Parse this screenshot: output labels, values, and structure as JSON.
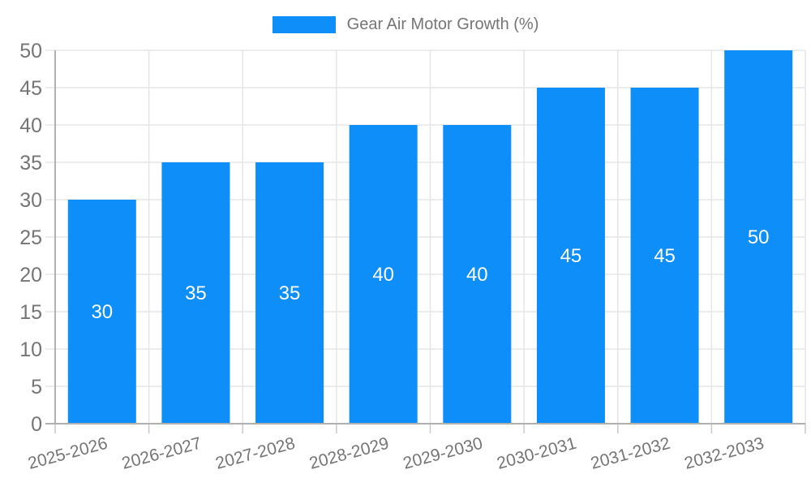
{
  "chart_data": {
    "type": "bar",
    "title": "",
    "legend": {
      "position": "top",
      "label": "Gear Air Motor Growth (%)"
    },
    "categories": [
      "2025-2026",
      "2026-2027",
      "2027-2028",
      "2028-2029",
      "2029-2030",
      "2030-2031",
      "2031-2032",
      "2032-2033"
    ],
    "series": [
      {
        "name": "Gear Air Motor Growth (%)",
        "color": "#0d8ef8",
        "values": [
          30,
          35,
          35,
          40,
          40,
          45,
          45,
          50
        ]
      }
    ],
    "xlabel": "",
    "ylabel": "",
    "ylim": [
      0,
      50
    ],
    "yticks": [
      0,
      5,
      10,
      15,
      20,
      25,
      30,
      35,
      40,
      45,
      50
    ],
    "grid": true,
    "x_label_rotation_deg": -15,
    "value_labels": {
      "position": "inside-center",
      "color": "#ffffff"
    },
    "colors": {
      "grid": "#e6e6e6",
      "axis": "#b0b0b0",
      "tick": "#c9c9c9",
      "tick_text": "#757575",
      "background": "#ffffff"
    }
  }
}
